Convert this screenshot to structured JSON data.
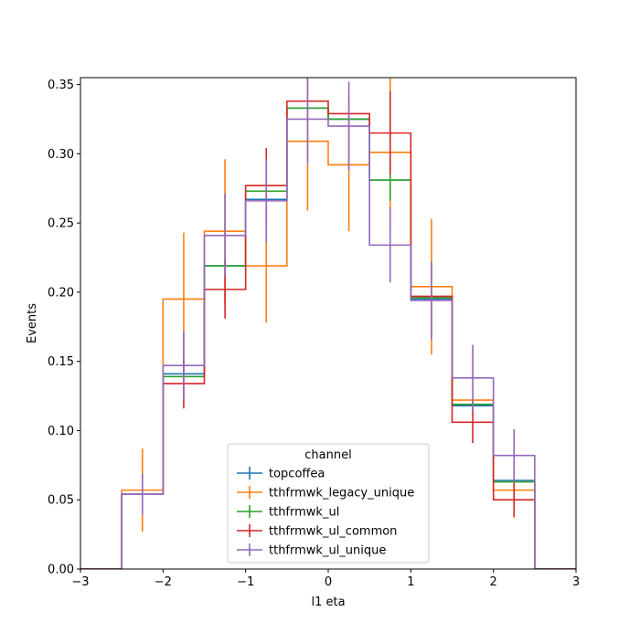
{
  "chart_data": {
    "type": "histogram-step",
    "xlabel": "l1 eta",
    "ylabel": "Events",
    "xlim": [
      -3,
      3
    ],
    "ylim": [
      0,
      0.355
    ],
    "xticks": [
      -3,
      -2,
      -1,
      0,
      1,
      2,
      3
    ],
    "yticks": [
      0.0,
      0.05,
      0.1,
      0.15,
      0.2,
      0.25,
      0.3,
      0.35
    ],
    "bin_edges": [
      -3.0,
      -2.5,
      -2.0,
      -1.5,
      -1.0,
      -0.5,
      0.0,
      0.5,
      1.0,
      1.5,
      2.0,
      2.5,
      3.0
    ],
    "legend": {
      "title": "channel",
      "placement": "lower center"
    },
    "series": [
      {
        "name": "topcoffea",
        "color": "#1f77b4",
        "values": [
          0,
          0.054,
          0.141,
          0.219,
          0.267,
          0.333,
          0.325,
          0.281,
          0.195,
          0.118,
          0.064,
          0
        ],
        "errors": [
          0,
          0,
          0,
          0,
          0,
          0,
          0,
          0,
          0,
          0,
          0,
          0
        ]
      },
      {
        "name": "tthfrmwk_legacy_unique",
        "color": "#ff7f0e",
        "values": [
          0,
          0.057,
          0.195,
          0.244,
          0.219,
          0.309,
          0.292,
          0.301,
          0.204,
          0.122,
          0.057,
          0
        ],
        "errors": [
          0,
          0.03,
          0.048,
          0.052,
          0.041,
          0.05,
          0.048,
          0.055,
          0.049,
          0,
          0.02,
          0
        ]
      },
      {
        "name": "tthfrmwk_ul",
        "color": "#2ca02c",
        "values": [
          0,
          0.054,
          0.139,
          0.219,
          0.273,
          0.333,
          0.325,
          0.281,
          0.196,
          0.119,
          0.063,
          0
        ],
        "errors": [
          0,
          0,
          0,
          0,
          0,
          0,
          0,
          0.015,
          0,
          0,
          0,
          0
        ]
      },
      {
        "name": "tthfrmwk_ul_common",
        "color": "#d62728",
        "values": [
          0,
          0.054,
          0.134,
          0.202,
          0.277,
          0.338,
          0.329,
          0.315,
          0.197,
          0.106,
          0.05,
          0
        ],
        "errors": [
          0,
          0,
          0.018,
          0.021,
          0.027,
          0,
          0,
          0.03,
          0,
          0.015,
          0.012,
          0
        ]
      },
      {
        "name": "tthfrmwk_ul_unique",
        "color": "#9467bd",
        "values": [
          0,
          0.054,
          0.147,
          0.241,
          0.266,
          0.325,
          0.32,
          0.234,
          0.194,
          0.138,
          0.082,
          0
        ],
        "errors": [
          0,
          0.015,
          0.025,
          0.03,
          0.03,
          0.032,
          0.032,
          0.027,
          0.028,
          0.024,
          0.019,
          0
        ]
      }
    ]
  }
}
